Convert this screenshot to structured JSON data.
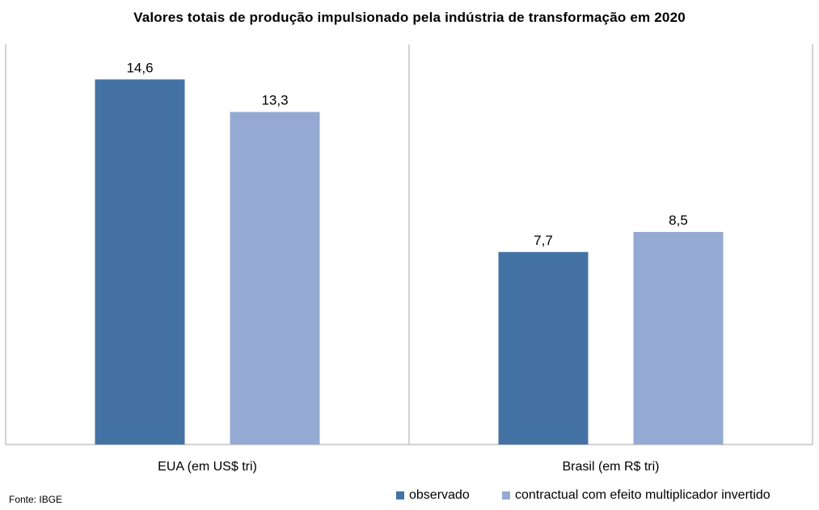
{
  "chart_data": {
    "type": "bar",
    "title": "Valores totais de produção impulsionado pela indústria de transformação em 2020",
    "categories": [
      "EUA (em US$ tri)",
      "Brasil (em R$ tri)"
    ],
    "series": [
      {
        "name": "observado",
        "values": [
          14.6,
          7.7
        ],
        "labels": [
          "14,6",
          "7,7"
        ],
        "color": "#4472a4"
      },
      {
        "name": "contractual com efeito multiplicador invertido",
        "values": [
          13.3,
          8.5
        ],
        "labels": [
          "13,3",
          "8,5"
        ],
        "color": "#95aad2"
      }
    ],
    "ylim": [
      0,
      16
    ],
    "grid": false,
    "legend": "bottom-right"
  },
  "source": "Fonte: IBGE"
}
